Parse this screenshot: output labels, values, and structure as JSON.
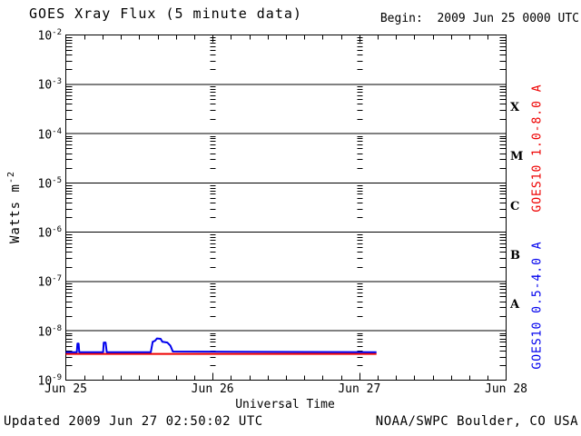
{
  "header": {
    "title": "GOES Xray Flux (5 minute data)",
    "begin": "Begin:  2009 Jun 25 0000 UTC"
  },
  "footer": {
    "updated": "Updated 2009 Jun 27 02:50:02 UTC",
    "source": "NOAA/SWPC Boulder, CO USA"
  },
  "chart_data": {
    "type": "line",
    "title": "GOES Xray Flux (5 minute data)",
    "begin_annotation": "Begin:  2009 Jun 25 0000 UTC",
    "xlabel": "Universal Time",
    "ylabel": "Watts m⁻²",
    "ylabel_base": "Watts m",
    "ylabel_exp": "-2",
    "x_axis": {
      "range_hours": [
        0,
        72
      ],
      "minor_tick_interval_hours": 3,
      "day_ticks": [
        {
          "label": "Jun 25",
          "hours": 0
        },
        {
          "label": "Jun 26",
          "hours": 24
        },
        {
          "label": "Jun 27",
          "hours": 48
        },
        {
          "label": "Jun 28",
          "hours": 72
        }
      ],
      "vertical_dotted_gridlines_hours": [
        24,
        48
      ]
    },
    "y_axis": {
      "scale": "log",
      "exponent_range": [
        -9,
        -2
      ],
      "unit": "Watts m^-2",
      "gridlines": "solid line at each decade"
    },
    "flare_classes": [
      {
        "label": "X",
        "exponent_mid": -3.5
      },
      {
        "label": "M",
        "exponent_mid": -4.5
      },
      {
        "label": "C",
        "exponent_mid": -5.5
      },
      {
        "label": "B",
        "exponent_mid": -6.5
      },
      {
        "label": "A",
        "exponent_mid": -7.5
      }
    ],
    "axis_color": "#000000",
    "series": [
      {
        "name": "GOES10 1.0-8.0 A",
        "color": "#ee0000",
        "points_hours_flux": [
          [
            0,
            3.4e-09
          ],
          [
            50.8,
            3.4e-09
          ]
        ]
      },
      {
        "name": "GOES10 0.5-4.0 A",
        "color": "#0000ee",
        "points_hours_flux": [
          [
            0,
            3.7e-09
          ],
          [
            1.8,
            3.7e-09
          ],
          [
            1.9,
            5.5e-09
          ],
          [
            2.1,
            5.5e-09
          ],
          [
            2.2,
            3.7e-09
          ],
          [
            6.1,
            3.7e-09
          ],
          [
            6.2,
            5.8e-09
          ],
          [
            6.5,
            5.8e-09
          ],
          [
            6.7,
            3.7e-09
          ],
          [
            13.9,
            3.7e-09
          ],
          [
            14.2,
            6e-09
          ],
          [
            14.6,
            6.3e-09
          ],
          [
            14.9,
            7e-09
          ],
          [
            15.5,
            6.9e-09
          ],
          [
            15.8,
            6e-09
          ],
          [
            16.6,
            5.8e-09
          ],
          [
            17.1,
            5e-09
          ],
          [
            17.5,
            3.8e-09
          ],
          [
            50.8,
            3.7e-09
          ]
        ]
      }
    ],
    "data_end_hours": 50.8
  }
}
